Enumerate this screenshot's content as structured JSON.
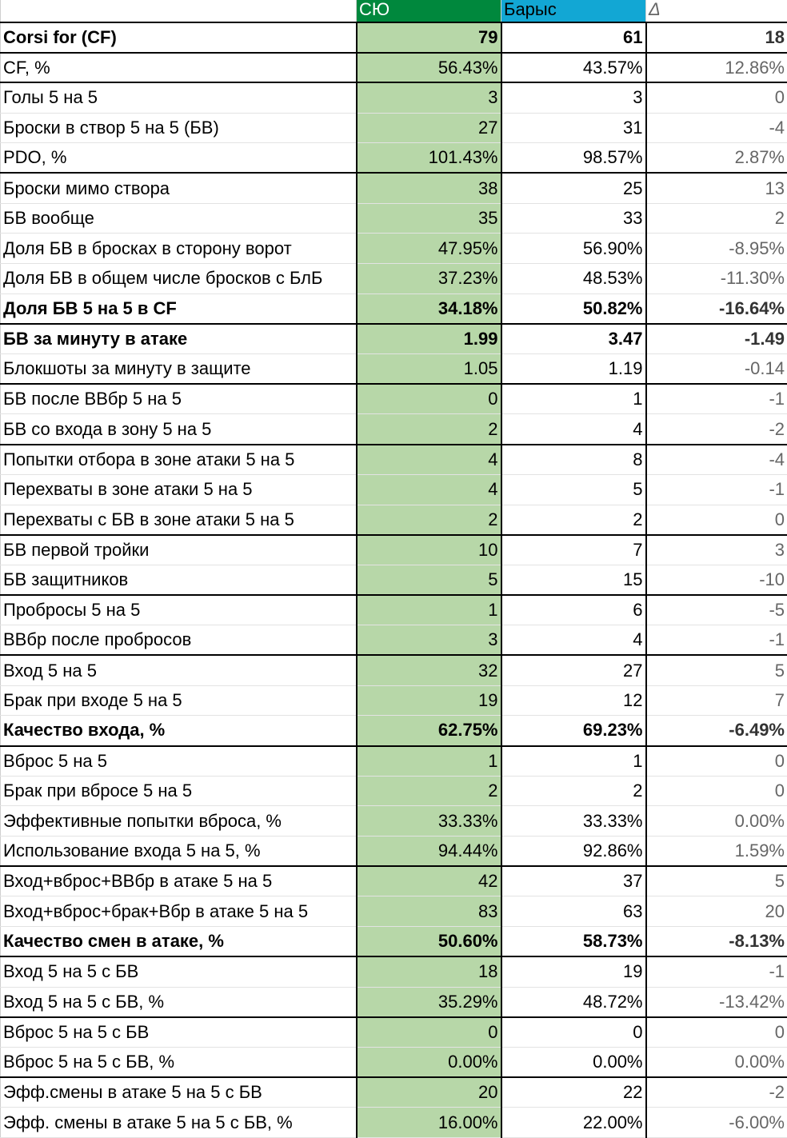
{
  "header": {
    "label": "",
    "team1": "СЮ",
    "team2": "Барыс",
    "delta": "Δ",
    "team1_color": "#00883d",
    "team2_color": "#12a7d4"
  },
  "rows": [
    {
      "label": "Corsi for (CF)",
      "v1": "79",
      "v2": "61",
      "d": "18",
      "bold": true,
      "sep": true
    },
    {
      "label": "CF, %",
      "v1": "56.43%",
      "v2": "43.57%",
      "d": "12.86%",
      "bold": false,
      "sep": true
    },
    {
      "label": "Голы 5 на 5",
      "v1": "3",
      "v2": "3",
      "d": "0",
      "bold": false,
      "sep": false
    },
    {
      "label": "Броски в створ 5 на 5 (БВ)",
      "v1": "27",
      "v2": "31",
      "d": "-4",
      "bold": false,
      "sep": false
    },
    {
      "label": "PDO, %",
      "v1": "101.43%",
      "v2": "98.57%",
      "d": "2.87%",
      "bold": false,
      "sep": true
    },
    {
      "label": "Броски мимо створа",
      "v1": "38",
      "v2": "25",
      "d": "13",
      "bold": false,
      "sep": false
    },
    {
      "label": "БВ вообще",
      "v1": "35",
      "v2": "33",
      "d": "2",
      "bold": false,
      "sep": false
    },
    {
      "label": "Доля БВ в бросках в сторону ворот",
      "v1": "47.95%",
      "v2": "56.90%",
      "d": "-8.95%",
      "bold": false,
      "sep": false
    },
    {
      "label": "Доля БВ в общем числе бросков с БлБ",
      "v1": "37.23%",
      "v2": "48.53%",
      "d": "-11.30%",
      "bold": false,
      "sep": false
    },
    {
      "label": "Доля БВ 5 на 5 в CF",
      "v1": "34.18%",
      "v2": "50.82%",
      "d": "-16.64%",
      "bold": true,
      "sep": true
    },
    {
      "label": "БВ за минуту в атаке",
      "v1": "1.99",
      "v2": "3.47",
      "d": "-1.49",
      "bold": true,
      "sep": false
    },
    {
      "label": "Блокшоты за минуту в защите",
      "v1": "1.05",
      "v2": "1.19",
      "d": "-0.14",
      "bold": false,
      "sep": true
    },
    {
      "label": "БВ после ВВбр 5 на 5",
      "v1": "0",
      "v2": "1",
      "d": "-1",
      "bold": false,
      "sep": false
    },
    {
      "label": "БВ со входа в зону 5 на 5",
      "v1": "2",
      "v2": "4",
      "d": "-2",
      "bold": false,
      "sep": true
    },
    {
      "label": "Попытки отбора в зоне атаки 5 на 5",
      "v1": "4",
      "v2": "8",
      "d": "-4",
      "bold": false,
      "sep": false
    },
    {
      "label": "Перехваты в зоне атаки 5 на 5",
      "v1": "4",
      "v2": "5",
      "d": "-1",
      "bold": false,
      "sep": false
    },
    {
      "label": "Перехваты с БВ в зоне атаки 5 на 5",
      "v1": "2",
      "v2": "2",
      "d": "0",
      "bold": false,
      "sep": true
    },
    {
      "label": "БВ первой тройки",
      "v1": "10",
      "v2": "7",
      "d": "3",
      "bold": false,
      "sep": false
    },
    {
      "label": "БВ защитников",
      "v1": "5",
      "v2": "15",
      "d": "-10",
      "bold": false,
      "sep": true
    },
    {
      "label": "Пробросы 5 на 5",
      "v1": "1",
      "v2": "6",
      "d": "-5",
      "bold": false,
      "sep": false
    },
    {
      "label": "ВВбр после пробросов",
      "v1": "3",
      "v2": "4",
      "d": "-1",
      "bold": false,
      "sep": true
    },
    {
      "label": "Вход 5 на 5",
      "v1": "32",
      "v2": "27",
      "d": "5",
      "bold": false,
      "sep": false
    },
    {
      "label": "Брак при входе 5 на 5",
      "v1": "19",
      "v2": "12",
      "d": "7",
      "bold": false,
      "sep": false
    },
    {
      "label": "Качество входа, %",
      "v1": "62.75%",
      "v2": "69.23%",
      "d": "-6.49%",
      "bold": true,
      "sep": true
    },
    {
      "label": "Вброс 5 на 5",
      "v1": "1",
      "v2": "1",
      "d": "0",
      "bold": false,
      "sep": false
    },
    {
      "label": "Брак при вбросе 5 на 5",
      "v1": "2",
      "v2": "2",
      "d": "0",
      "bold": false,
      "sep": false
    },
    {
      "label": "Эффективные попытки вброса, %",
      "v1": "33.33%",
      "v2": "33.33%",
      "d": "0.00%",
      "bold": false,
      "sep": false
    },
    {
      "label": "Использование входа 5 на 5, %",
      "v1": "94.44%",
      "v2": "92.86%",
      "d": "1.59%",
      "bold": false,
      "sep": true
    },
    {
      "label": "Вход+вброс+ВВбр в атаке 5 на 5",
      "v1": "42",
      "v2": "37",
      "d": "5",
      "bold": false,
      "sep": false
    },
    {
      "label": "Вход+вброс+брак+Вбр в атаке 5 на 5",
      "v1": "83",
      "v2": "63",
      "d": "20",
      "bold": false,
      "sep": false
    },
    {
      "label": "Качество смен в атаке, %",
      "v1": "50.60%",
      "v2": "58.73%",
      "d": "-8.13%",
      "bold": true,
      "sep": true
    },
    {
      "label": "Вход 5 на 5 с БВ",
      "v1": "18",
      "v2": "19",
      "d": "-1",
      "bold": false,
      "sep": false
    },
    {
      "label": "Вход 5 на 5 с БВ, %",
      "v1": "35.29%",
      "v2": "48.72%",
      "d": "-13.42%",
      "bold": false,
      "sep": true
    },
    {
      "label": "Вброс 5 на 5 с БВ",
      "v1": "0",
      "v2": "0",
      "d": "0",
      "bold": false,
      "sep": false
    },
    {
      "label": "Вброс 5 на 5 с БВ, %",
      "v1": "0.00%",
      "v2": "0.00%",
      "d": "0.00%",
      "bold": false,
      "sep": true
    },
    {
      "label": "Эфф.смены в атаке 5 на 5 с БВ",
      "v1": "20",
      "v2": "22",
      "d": "-2",
      "bold": false,
      "sep": false
    },
    {
      "label": "Эфф. смены в атаке 5 на 5 с БВ, %",
      "v1": "16.00%",
      "v2": "22.00%",
      "d": "-6.00%",
      "bold": false,
      "sep": false
    }
  ]
}
